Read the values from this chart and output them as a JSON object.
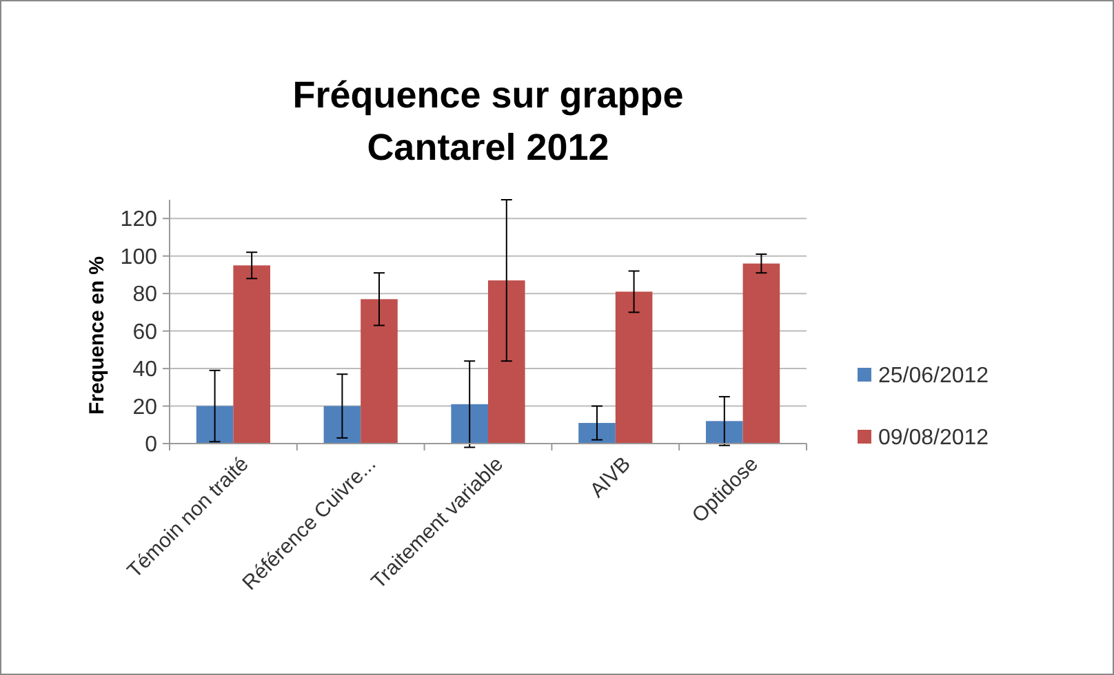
{
  "chart_data": {
    "type": "bar",
    "title": "Fréquence sur grappe\nCantarel 2012",
    "ylabel": "Frequence en %",
    "categories": [
      "Témoin non traité",
      "Référence Cuivre...",
      "Traitement variable",
      "AIVB",
      "Optidose"
    ],
    "series": [
      {
        "name": "25/06/2012",
        "color": "#4f81bd",
        "values": [
          20,
          20,
          21,
          11,
          12
        ],
        "errors": [
          19,
          17,
          23,
          9,
          13
        ]
      },
      {
        "name": "09/08/2012",
        "color": "#c0504d",
        "values": [
          95,
          77,
          87,
          81,
          96
        ],
        "errors": [
          7,
          14,
          43,
          11,
          5
        ]
      }
    ],
    "ylim": [
      0,
      130
    ],
    "yticks": [
      0,
      20,
      40,
      60,
      80,
      100,
      120
    ],
    "grid": "y",
    "legend": "right"
  }
}
